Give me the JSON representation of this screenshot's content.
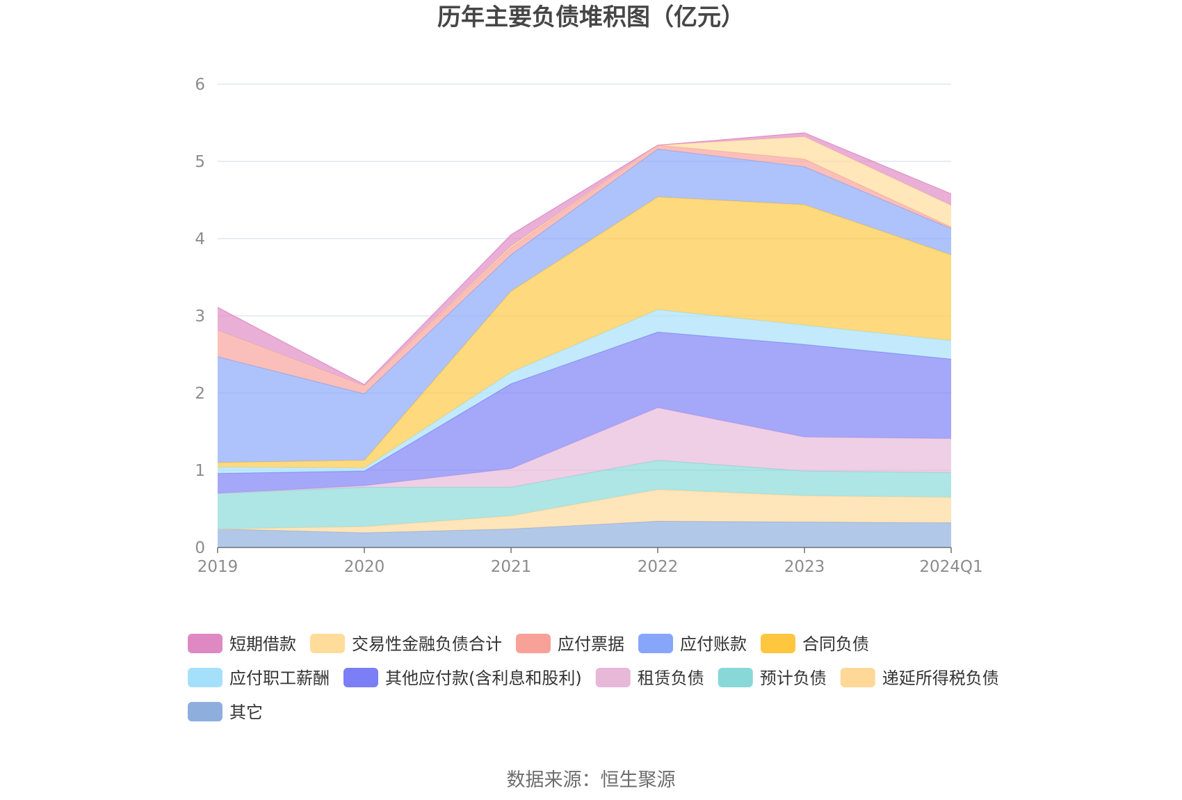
{
  "chart_data": {
    "type": "area",
    "stacked": true,
    "title": "历年主要负债堆积图（亿元）",
    "xlabel": "",
    "ylabel": "",
    "categories": [
      "2019",
      "2020",
      "2021",
      "2022",
      "2023",
      "2024Q1"
    ],
    "ylim": [
      0,
      6
    ],
    "yticks": [
      0,
      1,
      2,
      3,
      4,
      5,
      6
    ],
    "grid": true,
    "legend_position": "bottom",
    "series": [
      {
        "name": "其它",
        "color": "#8eaede",
        "values": [
          0.24,
          0.19,
          0.24,
          0.34,
          0.33,
          0.32
        ]
      },
      {
        "name": "递延所得税负债",
        "color": "#ffd898",
        "values": [
          0.0,
          0.08,
          0.17,
          0.41,
          0.34,
          0.33
        ]
      },
      {
        "name": "预计负债",
        "color": "#88d8d8",
        "values": [
          0.46,
          0.51,
          0.37,
          0.38,
          0.32,
          0.32
        ]
      },
      {
        "name": "租赁负债",
        "color": "#e7b8d8",
        "values": [
          0.0,
          0.02,
          0.24,
          0.68,
          0.44,
          0.44
        ]
      },
      {
        "name": "其他应付款(含利息和股利)",
        "color": "#7b7ef5",
        "values": [
          0.26,
          0.19,
          1.1,
          0.98,
          1.2,
          1.03
        ]
      },
      {
        "name": "应付职工薪酬",
        "color": "#a5e0fb",
        "values": [
          0.08,
          0.04,
          0.15,
          0.29,
          0.25,
          0.24
        ]
      },
      {
        "name": "合同负债",
        "color": "#ffc740",
        "values": [
          0.06,
          0.1,
          1.05,
          1.46,
          1.56,
          1.11
        ]
      },
      {
        "name": "应付账款",
        "color": "#87a6fb",
        "values": [
          1.37,
          0.86,
          0.47,
          0.62,
          0.49,
          0.34
        ]
      },
      {
        "name": "应付票据",
        "color": "#f8a199",
        "values": [
          0.34,
          0.1,
          0.09,
          0.05,
          0.1,
          0.02
        ]
      },
      {
        "name": "交易性金融负债合计",
        "color": "#ffdc9a",
        "values": [
          0.0,
          0.0,
          0.02,
          0.0,
          0.29,
          0.28
        ]
      },
      {
        "name": "短期借款",
        "color": "#df89c3",
        "values": [
          0.3,
          0.02,
          0.15,
          0.0,
          0.05,
          0.15
        ]
      }
    ],
    "legend_order": [
      "短期借款",
      "交易性金融负债合计",
      "应付票据",
      "应付账款",
      "合同负债",
      "应付职工薪酬",
      "其他应付款(含利息和股利)",
      "租赁负债",
      "预计负债",
      "递延所得税负债",
      "其它"
    ]
  },
  "footer": {
    "source": "数据来源：恒生聚源"
  }
}
